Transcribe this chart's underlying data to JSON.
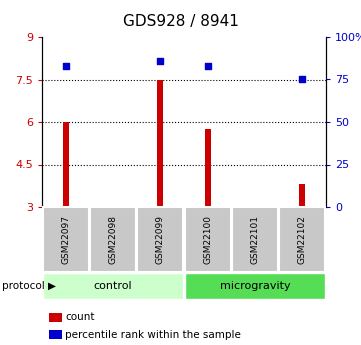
{
  "title": "GDS928 / 8941",
  "samples": [
    "GSM22097",
    "GSM22098",
    "GSM22099",
    "GSM22100",
    "GSM22101",
    "GSM22102"
  ],
  "bar_values": [
    6.0,
    3.0,
    7.5,
    5.75,
    3.0,
    3.8
  ],
  "bar_visible": [
    true,
    false,
    true,
    true,
    false,
    true
  ],
  "percentile_values": [
    83,
    null,
    86,
    83,
    null,
    75
  ],
  "ylim_left": [
    3,
    9
  ],
  "ylim_right": [
    0,
    100
  ],
  "yticks_left": [
    3,
    4.5,
    6,
    7.5,
    9
  ],
  "yticks_right": [
    0,
    25,
    50,
    75,
    100
  ],
  "ytick_labels_left": [
    "3",
    "4.5",
    "6",
    "7.5",
    "9"
  ],
  "ytick_labels_right": [
    "0",
    "25",
    "50",
    "75",
    "100%"
  ],
  "hlines": [
    4.5,
    6.0,
    7.5
  ],
  "bar_color": "#cc0000",
  "scatter_color": "#0000cc",
  "bar_width": 0.12,
  "groups": [
    {
      "label": "control",
      "indices": [
        0,
        1,
        2
      ],
      "color": "#ccffcc"
    },
    {
      "label": "microgravity",
      "indices": [
        3,
        4,
        5
      ],
      "color": "#55dd55"
    }
  ],
  "sample_box_color": "#c8c8c8",
  "background_color": "#ffffff",
  "legend_items": [
    {
      "label": "count",
      "color": "#cc0000"
    },
    {
      "label": "percentile rank within the sample",
      "color": "#0000cc"
    }
  ]
}
